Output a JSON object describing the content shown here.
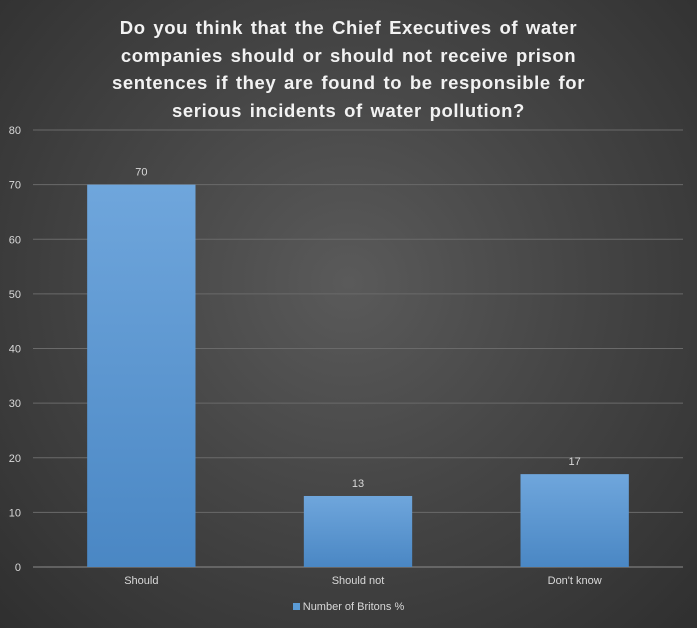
{
  "chart_data": {
    "type": "bar",
    "title_lines": [
      "Do you think that the Chief Executives of water",
      "companies should or should not receive prison",
      "sentences if they are found to be responsible for",
      "serious incidents of water pollution?"
    ],
    "categories": [
      "Should",
      "Should not",
      "Don't know"
    ],
    "series": [
      {
        "name": "Number of Britons %",
        "values": [
          70,
          13,
          17
        ],
        "color": "#5b9bd5"
      }
    ],
    "data_labels": [
      "70",
      "13",
      "17"
    ],
    "ylim": [
      0,
      80
    ],
    "yticks": [
      "0",
      "10",
      "20",
      "30",
      "40",
      "50",
      "60",
      "70",
      "80"
    ],
    "grid": true,
    "legend_position": "bottom"
  }
}
